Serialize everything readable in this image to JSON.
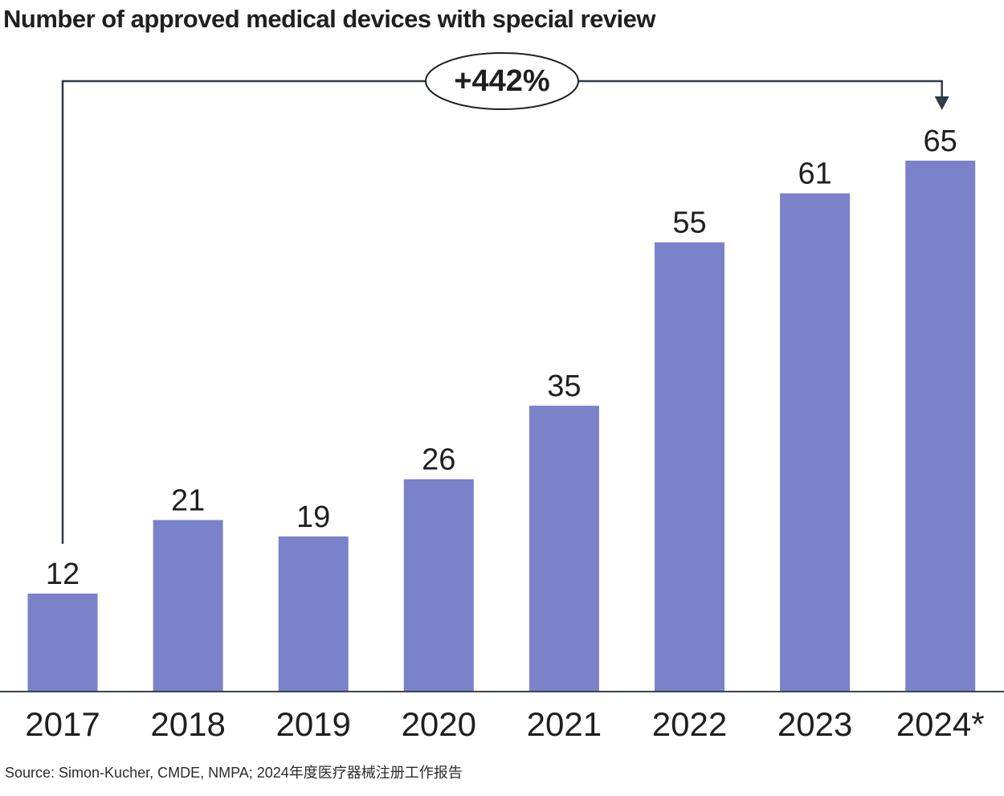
{
  "chart_data": {
    "type": "bar",
    "title": "Number of approved medical devices with special review",
    "categories": [
      "2017",
      "2018",
      "2019",
      "2020",
      "2021",
      "2022",
      "2023",
      "2024*"
    ],
    "values": [
      12,
      21,
      19,
      26,
      35,
      55,
      61,
      65
    ],
    "xlabel": "",
    "ylabel": "",
    "ylim": [
      0,
      65
    ],
    "grid": false,
    "bar_color": "#7a82c9",
    "annotation": {
      "text": "+442%",
      "from_category": "2017",
      "to_category": "2024*"
    },
    "source": "Source: Simon-Kucher, CMDE, NMPA; 2024年度医疗器械注册工作报告"
  }
}
